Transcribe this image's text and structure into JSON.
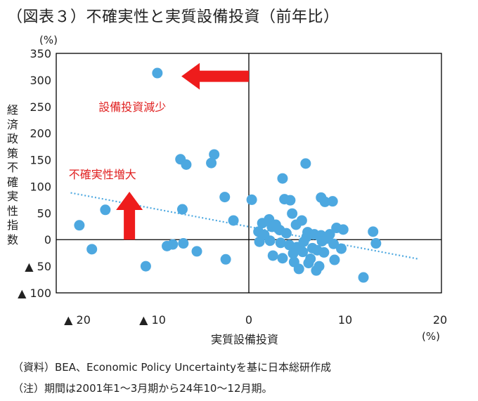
{
  "title": "（図表３）不確実性と実質設備投資（前年比）",
  "y_unit": "(%)",
  "x_unit": "(%)",
  "footnotes": {
    "source": "（資料）BEA、Economic Policy Uncertaintyを基に日本総研作成",
    "note": "（注）期間は2001年1～3月期から24年10～12月期。"
  },
  "colors": {
    "points": "#4da8e0",
    "trend": "#4da8e0",
    "arrow": "#ee1c1c",
    "annotation": "#e02020",
    "axis": "#000000"
  },
  "chart_data": {
    "type": "scatter",
    "xlabel": "実質設備投資",
    "ylabel": "経済政策不確実性指数",
    "xlim": [
      -20,
      20
    ],
    "ylim": [
      -100,
      350
    ],
    "x_tick_labels": [
      {
        "value": -20,
        "label": "▲ 20"
      },
      {
        "value": -10,
        "label": "▲ 10"
      },
      {
        "value": 0,
        "label": "0"
      },
      {
        "value": 10,
        "label": "10"
      },
      {
        "value": 20,
        "label": "20"
      }
    ],
    "y_tick_labels": [
      {
        "value": 350,
        "label": "350"
      },
      {
        "value": 300,
        "label": "300"
      },
      {
        "value": 250,
        "label": "250"
      },
      {
        "value": 200,
        "label": "200"
      },
      {
        "value": 150,
        "label": "150"
      },
      {
        "value": 100,
        "label": "100"
      },
      {
        "value": 50,
        "label": "50"
      },
      {
        "value": 0,
        "label": "0"
      },
      {
        "value": -50,
        "label": "▲ 50"
      },
      {
        "value": -100,
        "label": "▲ 100"
      }
    ],
    "grid": false,
    "trendline": {
      "x": [
        -18.5,
        17.5
      ],
      "y": [
        88,
        -36
      ],
      "style": "dotted"
    },
    "annotations": [
      {
        "text": "設備投資減少",
        "arrow": "left",
        "arrow_from": [
          0,
          307
        ],
        "arrow_to": [
          -7,
          307
        ],
        "anchor": [
          -15.6,
          242
        ]
      },
      {
        "text": "不確実性増大",
        "arrow": "up",
        "arrow_from": [
          -12.4,
          0
        ],
        "arrow_to": [
          -12.4,
          90
        ],
        "anchor": [
          -18.7,
          115
        ]
      }
    ],
    "points": [
      [
        -9.5,
        313
      ],
      [
        -7.1,
        151
      ],
      [
        -6.5,
        141
      ],
      [
        -3.6,
        160
      ],
      [
        -3.9,
        144
      ],
      [
        -14.9,
        56
      ],
      [
        -17.6,
        27
      ],
      [
        -16.3,
        -18
      ],
      [
        -2.5,
        80
      ],
      [
        -1.6,
        36
      ],
      [
        -6.9,
        57
      ],
      [
        -6.8,
        -7
      ],
      [
        -7.9,
        -9
      ],
      [
        -8.5,
        -12
      ],
      [
        -5.4,
        -22
      ],
      [
        -10.7,
        -50
      ],
      [
        -2.4,
        -37
      ],
      [
        0.3,
        75
      ],
      [
        3.5,
        115
      ],
      [
        5.9,
        143
      ],
      [
        3.7,
        76
      ],
      [
        4.3,
        74
      ],
      [
        7.5,
        79
      ],
      [
        7.9,
        71
      ],
      [
        8.7,
        72
      ],
      [
        1.4,
        31
      ],
      [
        2.1,
        38
      ],
      [
        2.4,
        24
      ],
      [
        1.0,
        15
      ],
      [
        1.6,
        9
      ],
      [
        2.8,
        28
      ],
      [
        4.5,
        49
      ],
      [
        4.9,
        28
      ],
      [
        3.2,
        18
      ],
      [
        3.9,
        12
      ],
      [
        5.5,
        36
      ],
      [
        6.1,
        14
      ],
      [
        6.8,
        10
      ],
      [
        7.5,
        8
      ],
      [
        8.4,
        10
      ],
      [
        9.1,
        22
      ],
      [
        1.1,
        -4
      ],
      [
        2.2,
        -2
      ],
      [
        3.3,
        -6
      ],
      [
        4.2,
        -10
      ],
      [
        5.0,
        -14
      ],
      [
        5.7,
        -4
      ],
      [
        6.6,
        -16
      ],
      [
        7.1,
        -20
      ],
      [
        7.8,
        -24
      ],
      [
        8.8,
        -8
      ],
      [
        9.6,
        -17
      ],
      [
        2.5,
        -30
      ],
      [
        3.5,
        -35
      ],
      [
        4.7,
        -42
      ],
      [
        5.2,
        -55
      ],
      [
        6.2,
        -44
      ],
      [
        7.3,
        -50
      ],
      [
        7.0,
        -58
      ],
      [
        8.9,
        -38
      ],
      [
        4.6,
        -26
      ],
      [
        5.6,
        -23
      ],
      [
        6.4,
        -36
      ],
      [
        12.9,
        15
      ],
      [
        13.2,
        -7
      ],
      [
        9.8,
        19
      ],
      [
        11.9,
        -71
      ],
      [
        6.0,
        5
      ],
      [
        7.6,
        -3
      ],
      [
        8.1,
        2
      ]
    ]
  }
}
